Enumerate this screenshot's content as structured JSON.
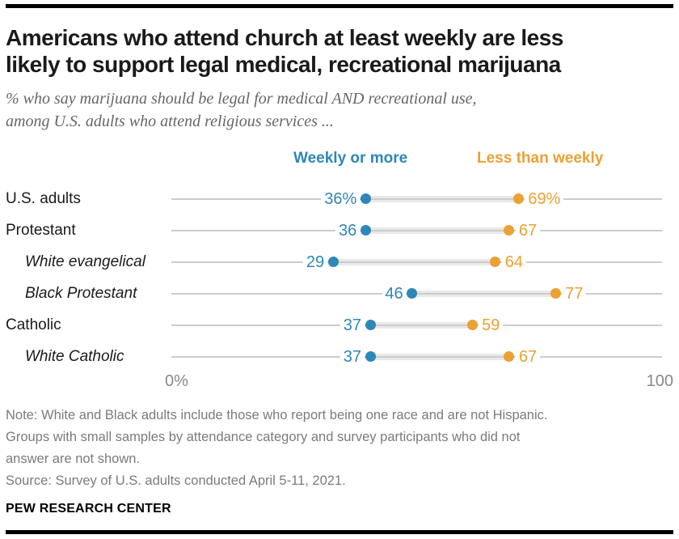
{
  "header": {
    "title": "Americans who attend church at least weekly are less\nlikely to support legal medical, recreational marijuana",
    "subtitle": "% who say marijuana should be legal for medical AND recreational use,\namong U.S. adults who attend religious services ..."
  },
  "colors": {
    "blue": "#2e87b8",
    "orange": "#eba134",
    "track_gray": "#cccccc",
    "band_gray": "#e9e9e9",
    "subtitle_gray": "#666666",
    "note_gray": "#7b7b7b",
    "axis_gray": "#888888"
  },
  "chart_data": {
    "type": "scatter",
    "subtype": "dot-plot",
    "title": "Americans who attend church at least weekly are less likely to support legal medical, recreational marijuana",
    "categories": [
      "U.S. adults",
      "Protestant",
      "White evangelical",
      "Black Protestant",
      "Catholic",
      "White Catholic"
    ],
    "category_italic": [
      false,
      false,
      true,
      true,
      false,
      true
    ],
    "series": [
      {
        "name": "Weekly or more",
        "color": "#2e87b8",
        "values": [
          36,
          36,
          29,
          46,
          37,
          37
        ],
        "labels": [
          "36%",
          "36",
          "29",
          "46",
          "37",
          "37"
        ]
      },
      {
        "name": "Less than weekly",
        "color": "#eba134",
        "values": [
          69,
          67,
          64,
          77,
          59,
          67
        ],
        "labels": [
          "69%",
          "67",
          "64",
          "77",
          "59",
          "67"
        ]
      }
    ],
    "xlim": [
      0,
      100
    ],
    "axis_labels": {
      "left": "0%",
      "right": "100"
    },
    "legend_position": "top",
    "grid": false
  },
  "footer": {
    "note": "Note: White and Black adults include those who report being one race and are not Hispanic.\nGroups with small samples by attendance category and survey participants who did not\nanswer are not shown.",
    "source": "Source: Survey of U.S. adults conducted April 5-11, 2021.",
    "brand": "PEW RESEARCH CENTER"
  }
}
